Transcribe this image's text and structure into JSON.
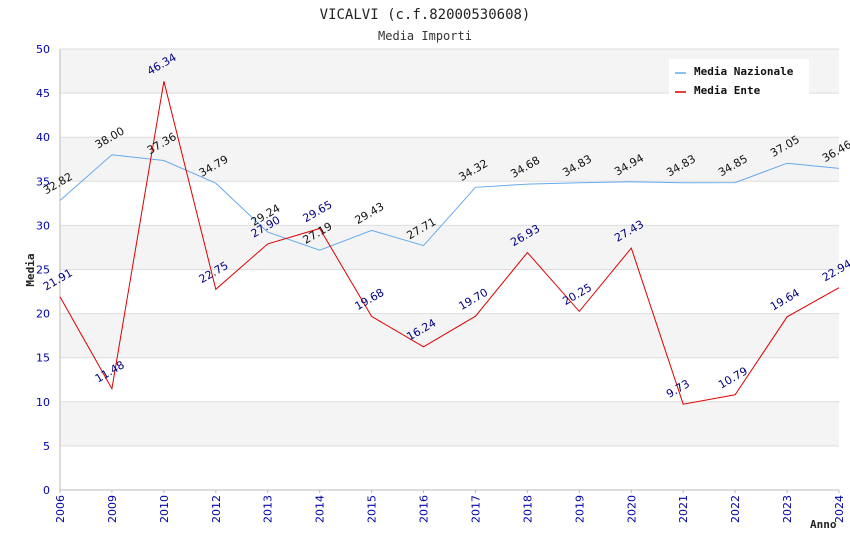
{
  "chart_data": {
    "type": "line",
    "title": "VICALVI (c.f.82000530608)",
    "subtitle": "Media Importi",
    "xlabel": "Anno",
    "ylabel": "Media",
    "ylim": [
      0,
      50
    ],
    "yticks": [
      0,
      5,
      10,
      15,
      20,
      25,
      30,
      35,
      40,
      45,
      50
    ],
    "categories": [
      "2006",
      "2009",
      "2010",
      "2012",
      "2013",
      "2014",
      "2015",
      "2016",
      "2017",
      "2018",
      "2019",
      "2020",
      "2021",
      "2022",
      "2023",
      "2024"
    ],
    "series": [
      {
        "name": "Media Nazionale",
        "color": "#66aaee",
        "values": [
          32.82,
          38.0,
          37.36,
          34.79,
          29.24,
          27.19,
          29.43,
          27.71,
          34.32,
          34.68,
          34.83,
          34.94,
          34.83,
          34.85,
          37.05,
          36.46
        ],
        "labels": [
          "32.82",
          "38.00",
          "37.36",
          "34.79",
          "29.24",
          "27.19",
          "29.43",
          "27.71",
          "34.32",
          "34.68",
          "34.83",
          "34.94",
          "34.83",
          "34.85",
          "37.05",
          "36.46"
        ]
      },
      {
        "name": "Media Ente",
        "color": "#dd0000",
        "values": [
          21.91,
          11.48,
          46.34,
          22.75,
          27.9,
          29.65,
          19.68,
          16.24,
          19.7,
          26.93,
          20.25,
          27.43,
          9.73,
          10.79,
          19.64,
          22.94
        ],
        "labels": [
          "21.91",
          "11.48",
          "46.34",
          "22.75",
          "27.90",
          "29.65",
          "19.68",
          "16.24",
          "19.70",
          "26.93",
          "20.25",
          "27.43",
          "9.73",
          "10.79",
          "19.64",
          "22.94"
        ]
      }
    ],
    "legend_position": "top-right",
    "grid": true
  }
}
